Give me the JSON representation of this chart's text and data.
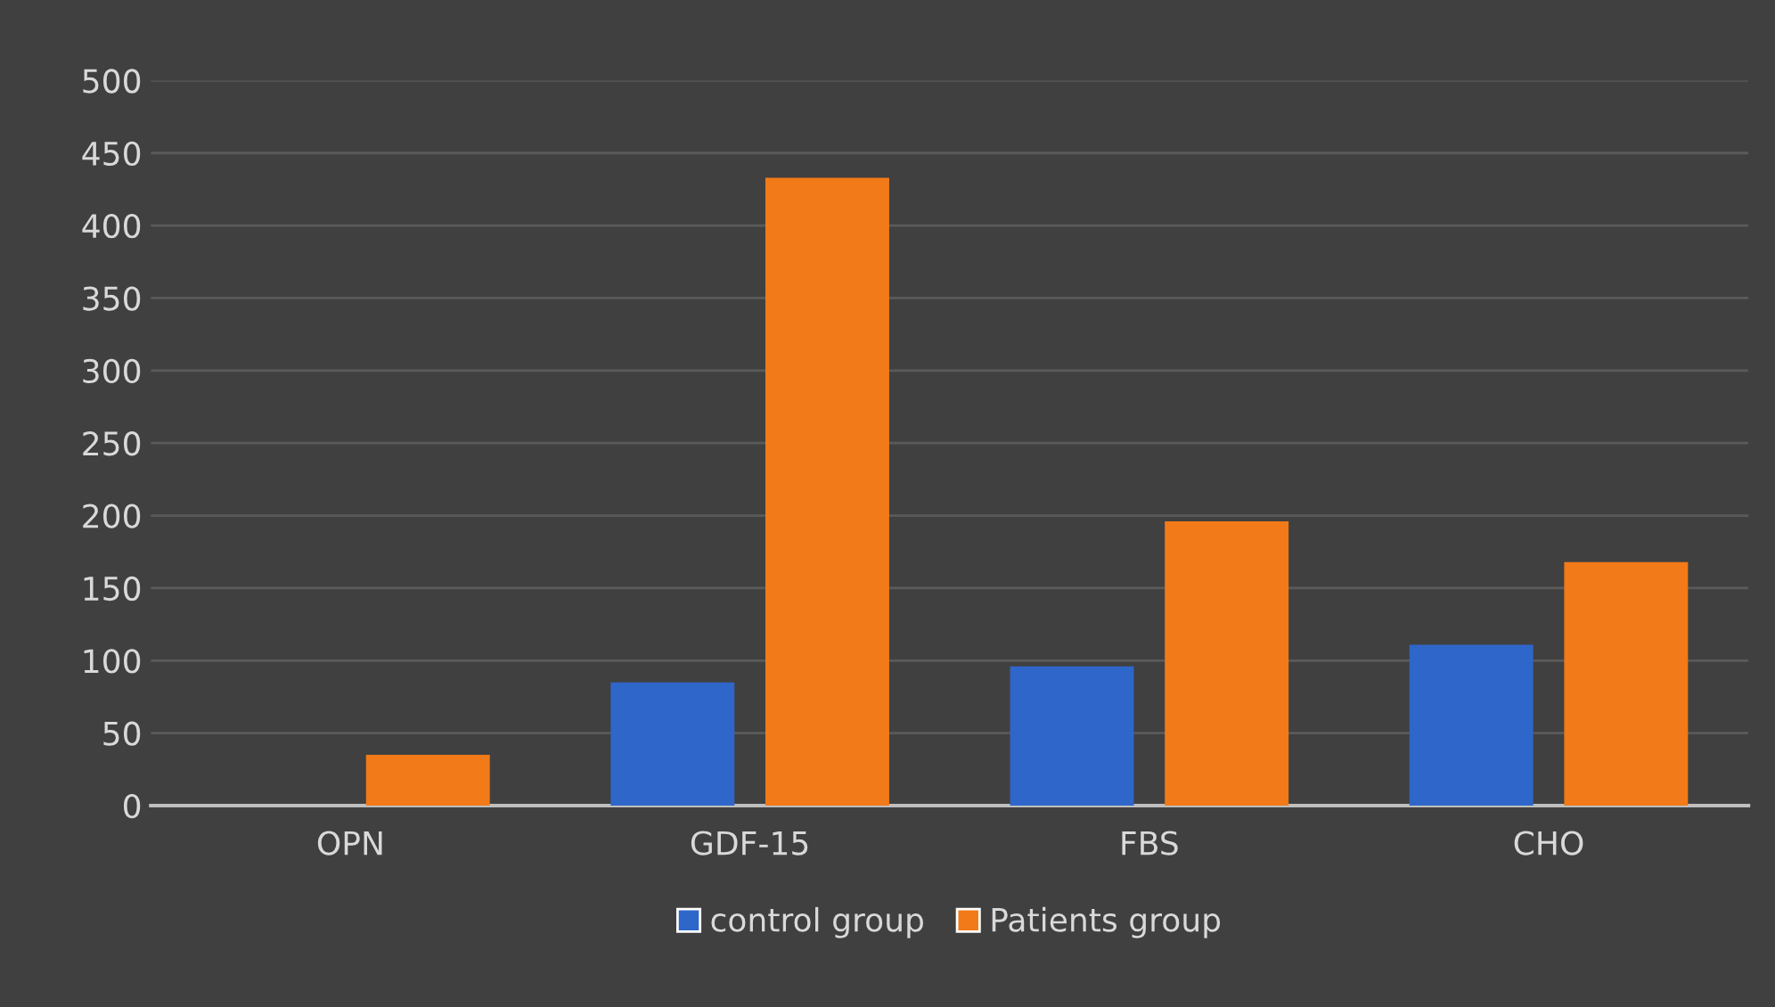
{
  "chart_data": {
    "type": "bar",
    "categories": [
      "OPN",
      "GDF-15",
      "FBS",
      "CHO"
    ],
    "series": [
      {
        "name": "control group",
        "color": "#2f66c9",
        "values": [
          null,
          85,
          96,
          111
        ]
      },
      {
        "name": "Patients group",
        "color": "#f27a18",
        "values": [
          35,
          433,
          196,
          168
        ]
      }
    ],
    "ylim": [
      0,
      500
    ],
    "yticks": [
      0,
      50,
      100,
      150,
      200,
      250,
      300,
      350,
      400,
      450,
      500
    ],
    "grid": "y",
    "legend": "bottom"
  }
}
